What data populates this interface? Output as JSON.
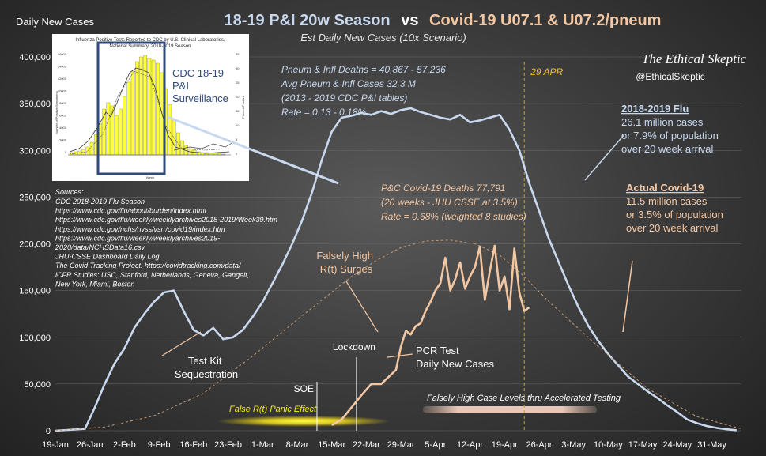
{
  "chart_data": {
    "type": "line",
    "title_parts": {
      "season": "18-19 P&I 20w Season",
      "vs": "vs",
      "covid": "Covid-19  U07.1 & U07.2/pneum"
    },
    "subtitle": "Est Daily New Cases (10x Scenario)",
    "ylabel": "Daily New Cases",
    "ylim": [
      0,
      400000
    ],
    "yticks": [
      0,
      50000,
      100000,
      150000,
      200000,
      250000,
      300000,
      350000,
      400000
    ],
    "ytick_labels": [
      "0",
      "50,000",
      "100,000",
      "150,000",
      "200,000",
      "250,000",
      "300,000",
      "350,000",
      "400,000"
    ],
    "xlim": [
      0,
      139
    ],
    "xticks": [
      0,
      7,
      14,
      21,
      28,
      35,
      42,
      49,
      56,
      63,
      70,
      77,
      84,
      91,
      98,
      105,
      112,
      119,
      126,
      133
    ],
    "xtick_labels": [
      "19-Jan",
      "26-Jan",
      "2-Feb",
      "9-Feb",
      "16-Feb",
      "23-Feb",
      "1-Mar",
      "8-Mar",
      "15-Mar",
      "22-Mar",
      "29-Mar",
      "5-Apr",
      "12-Apr",
      "19-Apr",
      "26-Apr",
      "3-May",
      "10-May",
      "17-May",
      "24-May",
      "31-May"
    ],
    "series": [
      {
        "name": "2018-2019 Flu",
        "color": "#c8d8ee",
        "x": [
          0,
          6,
          8,
          10,
          12,
          14,
          16,
          18,
          20,
          22,
          24,
          26,
          28,
          30,
          32,
          34,
          36,
          38,
          40,
          42,
          44,
          46,
          48,
          50,
          52,
          54,
          56,
          58,
          60,
          62,
          64,
          66,
          68,
          70,
          72,
          74,
          76,
          78,
          80,
          82,
          84,
          86,
          88,
          90,
          92,
          94,
          96,
          98,
          100,
          102,
          104,
          106,
          108,
          110,
          112,
          114,
          116,
          118,
          120,
          122,
          124,
          126,
          128,
          130,
          132,
          134,
          136,
          138
        ],
        "values": [
          0,
          2000,
          25000,
          50000,
          72000,
          88000,
          110000,
          125000,
          138000,
          148000,
          150000,
          128000,
          108000,
          102000,
          110000,
          98000,
          100000,
          108000,
          122000,
          138000,
          158000,
          178000,
          200000,
          225000,
          255000,
          290000,
          320000,
          335000,
          337000,
          340000,
          338000,
          342000,
          339000,
          343000,
          345000,
          341000,
          338000,
          335000,
          333000,
          338000,
          330000,
          332000,
          335000,
          338000,
          322000,
          300000,
          265000,
          235000,
          205000,
          180000,
          155000,
          132000,
          112000,
          96000,
          82000,
          70000,
          58000,
          50000,
          42000,
          35000,
          27000,
          20000,
          12000,
          8000,
          5000,
          3000,
          1500,
          500
        ]
      },
      {
        "name": "Actual Covid-19 trend",
        "color": "#c89a72",
        "dashed": true,
        "x": [
          0,
          10,
          20,
          30,
          40,
          50,
          60,
          65,
          70,
          75,
          80,
          85,
          90,
          95,
          100,
          110,
          120,
          130,
          139
        ],
        "values": [
          0,
          4000,
          16000,
          40000,
          80000,
          123000,
          165000,
          182000,
          196000,
          203000,
          204000,
          200000,
          188000,
          165000,
          138000,
          90000,
          45000,
          15000,
          2000
        ]
      },
      {
        "name": "PCR Test Daily New Cases",
        "color": "#f4c7a3",
        "x": [
          56,
          58,
          60,
          62,
          64,
          66,
          68,
          69,
          70,
          71,
          72,
          73,
          74,
          75,
          76,
          77,
          78,
          79,
          80,
          81,
          82,
          83,
          84,
          85,
          86,
          87,
          88,
          89,
          90,
          91,
          92,
          93,
          94,
          95,
          96
        ],
        "values": [
          6000,
          12000,
          25000,
          38000,
          50000,
          50000,
          60000,
          65000,
          90000,
          107000,
          103000,
          112000,
          115000,
          128000,
          138000,
          150000,
          158000,
          185000,
          150000,
          162000,
          180000,
          152000,
          165000,
          175000,
          197000,
          140000,
          170000,
          198000,
          150000,
          165000,
          130000,
          195000,
          148000,
          128000,
          132000
        ]
      }
    ],
    "event_markers": [
      {
        "label": "SOE",
        "x": 53
      },
      {
        "label": "Lockdown",
        "x": 61
      },
      {
        "label": "29 APR",
        "x": 95
      }
    ]
  },
  "annotations": {
    "brand": "The Ethical Skeptic",
    "handle": "@EthicalSkeptic",
    "pi_stats": [
      "Pneum & Infl Deaths  = 40,867 - 57,236",
      "Avg Pneum & Infl Cases  32.3  M",
      "(2013 - 2019  CDC P&I tables)",
      "Rate = 0.13  - 0.18%"
    ],
    "covid_stats": [
      "P&C Covid-19 Deaths  77,791",
      "(20 weeks - JHU CSSE at 3.5%)",
      "Rate = 0.68% (weighted 8 studies)"
    ],
    "flu_block": {
      "title": "2018-2019  Flu",
      "lines": [
        "26.1 million cases",
        "or 7.9% of population",
        "over 20 week arrival"
      ]
    },
    "covid_block": {
      "title": "Actual Covid-19",
      "lines": [
        "11.5 million cases",
        "or 3.5% of population",
        "over 20 week arrival"
      ]
    },
    "test_kit": [
      "Test Kit",
      "Sequestration"
    ],
    "falsely_high": [
      "Falsely High",
      "R(t) Surges"
    ],
    "pcr_label": [
      "PCR Test",
      "Daily New Cases"
    ],
    "false_rt": "False R(t) Panic Effect",
    "accel": "Falsely High Case Levels thru Accelerated  Testing",
    "cdc_label": [
      "CDC 18-19",
      "P&I",
      "Surveillance"
    ],
    "sources_title": "Sources:",
    "sources": [
      "CDC 2018-2019 Flu Season",
      "    https://www.cdc.gov/flu/about/burden/index.html",
      "    https://www.cdc.gov/flu/weekly/weeklyarchives2018-2019/Week39.htm",
      "    https://www.cdc.gov/nchs/nvss/vsrr/covid19/index.htm",
      "    https://www.cdc.gov/flu/weekly/weeklyarchives2019-",
      "2020/data/NCHSData16.csv",
      "JHU-CSSE Dashboard Daily Log",
      "The Covid Tracking Project: https://covidtracking.com/data/",
      "iCFR Studies: USC, Stanford, Netherlands, Geneva, Gangelt,",
      "New York, Miami, Boston"
    ],
    "inset_title": "Influenza Positive Tests Reported to CDC by U.S. Clinical Laboratories,",
    "inset_title2": "National Summary, 2018-2019 Season",
    "inset_ylabel_left": "Number of Positive Specimens",
    "inset_ylabel_right": "Percent Positive",
    "inset_xlabel": "Week",
    "inset_yticks_left": [
      "16000",
      "14000",
      "12000",
      "10000",
      "8000",
      "6000",
      "4000",
      "2000",
      "0"
    ],
    "inset_yticks_right": [
      "35",
      "30",
      "25",
      "20",
      "15",
      "10",
      "5",
      "0"
    ]
  }
}
